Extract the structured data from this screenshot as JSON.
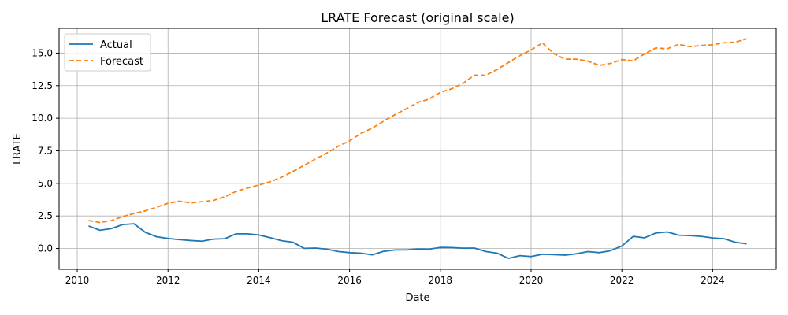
{
  "chart_data": {
    "type": "line",
    "title": "LRATE Forecast (original scale)",
    "xlabel": "Date",
    "ylabel": "LRATE",
    "xlim": [
      2009.6,
      2025.4
    ],
    "ylim": [
      -1.6,
      16.9
    ],
    "grid": true,
    "legend_position": "top-left",
    "x_ticks": [
      2010,
      2012,
      2014,
      2016,
      2018,
      2020,
      2022,
      2024
    ],
    "x_tick_labels": [
      "2010",
      "2012",
      "2014",
      "2016",
      "2018",
      "2020",
      "2022",
      "2024"
    ],
    "y_ticks": [
      0,
      2.5,
      5,
      7.5,
      10,
      12.5,
      15
    ],
    "y_tick_labels": [
      "0.0",
      "2.5",
      "5.0",
      "7.5",
      "10.0",
      "12.5",
      "15.0"
    ],
    "x": [
      2010.25,
      2010.5,
      2010.75,
      2011.0,
      2011.25,
      2011.5,
      2011.75,
      2012.0,
      2012.25,
      2012.5,
      2012.75,
      2013.0,
      2013.25,
      2013.5,
      2013.75,
      2014.0,
      2014.25,
      2014.5,
      2014.75,
      2015.0,
      2015.25,
      2015.5,
      2015.75,
      2016.0,
      2016.25,
      2016.5,
      2016.75,
      2017.0,
      2017.25,
      2017.5,
      2017.75,
      2018.0,
      2018.25,
      2018.5,
      2018.75,
      2019.0,
      2019.25,
      2019.5,
      2019.75,
      2020.0,
      2020.25,
      2020.5,
      2020.75,
      2021.0,
      2021.25,
      2021.5,
      2021.75,
      2022.0,
      2022.25,
      2022.5,
      2022.75,
      2023.0,
      2023.25,
      2023.5,
      2023.75,
      2024.0,
      2024.25,
      2024.5,
      2024.75
    ],
    "series": [
      {
        "name": "Actual",
        "color": "#1f77b4",
        "style": "solid",
        "values": [
          1.73,
          1.4,
          1.53,
          1.84,
          1.9,
          1.24,
          0.9,
          0.77,
          0.68,
          0.61,
          0.56,
          0.72,
          0.75,
          1.13,
          1.13,
          1.04,
          0.83,
          0.6,
          0.48,
          0.01,
          0.03,
          -0.05,
          -0.23,
          -0.32,
          -0.36,
          -0.49,
          -0.22,
          -0.11,
          -0.11,
          -0.04,
          -0.05,
          0.08,
          0.07,
          0.02,
          0.03,
          -0.23,
          -0.36,
          -0.76,
          -0.55,
          -0.62,
          -0.44,
          -0.47,
          -0.51,
          -0.41,
          -0.24,
          -0.32,
          -0.17,
          0.19,
          0.93,
          0.82,
          1.19,
          1.27,
          1.02,
          0.99,
          0.93,
          0.81,
          0.75,
          0.48,
          0.36
        ]
      },
      {
        "name": "Forecast",
        "color": "#ff7f0e",
        "style": "dashed",
        "values": [
          2.15,
          2.0,
          2.14,
          2.45,
          2.69,
          2.89,
          3.17,
          3.47,
          3.63,
          3.5,
          3.59,
          3.69,
          3.97,
          4.38,
          4.64,
          4.87,
          5.12,
          5.47,
          5.91,
          6.39,
          6.87,
          7.33,
          7.85,
          8.26,
          8.84,
          9.24,
          9.77,
          10.27,
          10.72,
          11.21,
          11.47,
          11.98,
          12.26,
          12.68,
          13.3,
          13.3,
          13.74,
          14.28,
          14.8,
          15.24,
          15.78,
          14.96,
          14.54,
          14.53,
          14.39,
          14.05,
          14.21,
          14.5,
          14.41,
          14.94,
          15.4,
          15.33,
          15.67,
          15.5,
          15.58,
          15.64,
          15.79,
          15.84,
          16.1
        ]
      }
    ]
  }
}
